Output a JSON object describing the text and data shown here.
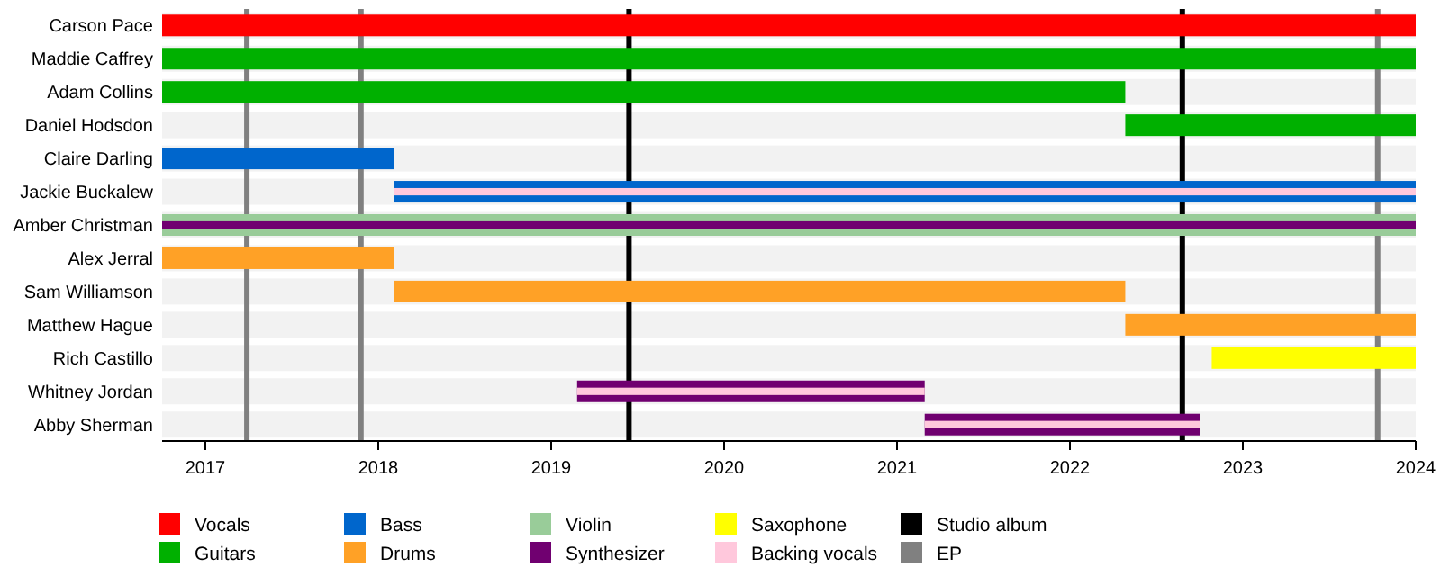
{
  "chart_data": {
    "type": "bar",
    "orientation": "horizontal",
    "categories": [
      "Carson Pace",
      "Maddie Caffrey",
      "Adam Collins",
      "Daniel Hodsdon",
      "Claire Darling",
      "Jackie Buckalew",
      "Amber Christman",
      "Alex Jerral",
      "Sam Williamson",
      "Matthew Hague",
      "Rich Castillo",
      "Whitney Jordan",
      "Abby Sherman"
    ],
    "xlim": [
      2016.75,
      2024
    ],
    "xticks": [
      2017,
      2018,
      2019,
      2020,
      2021,
      2022,
      2023,
      2024
    ],
    "legend": "bottom",
    "series": [
      {
        "name": "Vocals",
        "color": "#ff0000",
        "base": [
          2016.75,
          null,
          null,
          null,
          null,
          null,
          null,
          null,
          null,
          null,
          null,
          null,
          null
        ],
        "values": [
          7.25,
          null,
          null,
          null,
          null,
          null,
          null,
          null,
          null,
          null,
          null,
          null,
          null
        ]
      },
      {
        "name": "Guitars",
        "color": "#00b000",
        "base": [
          null,
          2016.75,
          2016.75,
          2022.32,
          null,
          null,
          null,
          null,
          null,
          null,
          null,
          null,
          null
        ],
        "values": [
          null,
          7.25,
          5.57,
          1.68,
          null,
          null,
          null,
          null,
          null,
          null,
          null,
          null,
          null
        ]
      },
      {
        "name": "Bass",
        "color": "#0066cc",
        "base": [
          null,
          null,
          null,
          null,
          2016.75,
          2018.09,
          null,
          null,
          null,
          null,
          null,
          null,
          null
        ],
        "values": [
          null,
          null,
          null,
          null,
          1.34,
          5.91,
          null,
          null,
          null,
          null,
          null,
          null,
          null
        ]
      },
      {
        "name": "Drums",
        "color": "#ffa126",
        "base": [
          null,
          null,
          null,
          null,
          null,
          null,
          null,
          2016.75,
          2018.09,
          2022.32,
          null,
          null,
          null
        ],
        "values": [
          null,
          null,
          null,
          null,
          null,
          null,
          null,
          1.34,
          4.23,
          1.68,
          null,
          null,
          null
        ]
      },
      {
        "name": "Violin",
        "color": "#99cc99",
        "base": [
          null,
          null,
          null,
          null,
          null,
          null,
          2016.75,
          null,
          null,
          null,
          null,
          null,
          null
        ],
        "values": [
          null,
          null,
          null,
          null,
          null,
          null,
          7.25,
          null,
          null,
          null,
          null,
          null,
          null
        ]
      },
      {
        "name": "Synthesizer",
        "color": "#700070",
        "base": [
          null,
          null,
          null,
          null,
          null,
          null,
          2016.75,
          null,
          null,
          null,
          null,
          2019.15,
          2021.16
        ],
        "values": [
          null,
          null,
          null,
          null,
          null,
          null,
          7.25,
          null,
          null,
          null,
          null,
          2.01,
          1.59
        ]
      },
      {
        "name": "Saxophone",
        "color": "#ffff00",
        "base": [
          null,
          null,
          null,
          null,
          null,
          null,
          null,
          null,
          null,
          null,
          2022.82,
          null,
          null
        ],
        "values": [
          null,
          null,
          null,
          null,
          null,
          null,
          null,
          null,
          null,
          null,
          1.18,
          null,
          null
        ]
      },
      {
        "name": "Backing vocals",
        "color": "#ffc8dc",
        "base": [
          null,
          null,
          null,
          null,
          null,
          2018.09,
          null,
          null,
          null,
          null,
          null,
          2019.15,
          2021.16
        ],
        "values": [
          null,
          null,
          null,
          null,
          null,
          5.91,
          null,
          null,
          null,
          null,
          null,
          2.01,
          1.59
        ]
      }
    ],
    "ref_lines": [
      {
        "axis": "x",
        "value": 2019.45,
        "label": "Studio album",
        "color": "#000000"
      },
      {
        "axis": "x",
        "value": 2022.65,
        "color": "#000000"
      },
      {
        "axis": "x",
        "value": 2017.24,
        "label": "EP",
        "color": "#808080"
      },
      {
        "axis": "x",
        "value": 2017.9,
        "color": "#808080"
      },
      {
        "axis": "x",
        "value": 2023.78,
        "color": "#808080"
      }
    ]
  }
}
